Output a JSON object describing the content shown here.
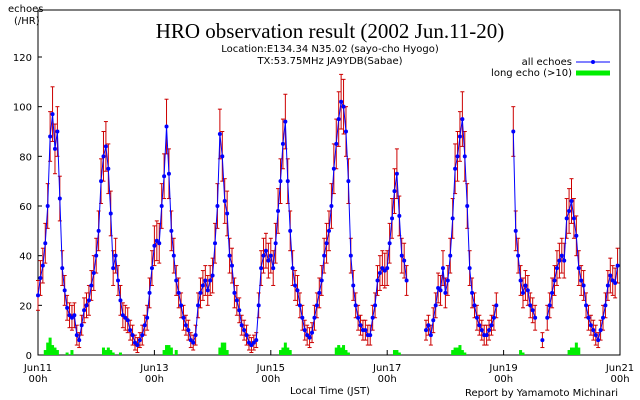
{
  "chart_data": {
    "type": "line",
    "title": "HRO observation result (2002 Jun.11-20)",
    "subtitles": [
      "Location:E134.34 N35.02 (sayo-cho Hyogo)",
      "TX:53.75MHz JA9YDB(Sabae)"
    ],
    "y_label": [
      "echoes",
      "(/HR)"
    ],
    "x_label": "Local Time (JST)",
    "annotation": "Report by Yamamoto Michinari",
    "legend": "top-right",
    "xlim": [
      0,
      240
    ],
    "xticks": [
      {
        "value": 0,
        "label": "Jun11\n00h"
      },
      {
        "value": 48,
        "label": "Jun13\n00h"
      },
      {
        "value": 96,
        "label": "Jun15\n00h"
      },
      {
        "value": 144,
        "label": "Jun17\n00h"
      },
      {
        "value": 192,
        "label": "Jun19\n00h"
      },
      {
        "value": 240,
        "label": "Jun21\n00h"
      }
    ],
    "ylim": [
      0,
      120
    ],
    "yticks": [
      0,
      20,
      40,
      60,
      80,
      100,
      120
    ],
    "x": [
      0,
      1,
      2,
      3,
      4,
      5,
      6,
      7,
      8,
      9,
      10,
      11,
      12,
      13,
      14,
      15,
      16,
      17,
      18,
      19,
      20,
      21,
      22,
      23,
      24,
      25,
      26,
      27,
      28,
      29,
      30,
      31,
      32,
      33,
      34,
      35,
      36,
      37,
      38,
      39,
      40,
      41,
      42,
      43,
      44,
      45,
      46,
      47,
      48,
      49,
      50,
      51,
      52,
      53,
      54,
      55,
      56,
      57,
      58,
      59,
      60,
      61,
      62,
      63,
      64,
      65,
      66,
      67,
      68,
      69,
      70,
      71,
      72,
      73,
      74,
      75,
      76,
      77,
      78,
      79,
      80,
      81,
      82,
      83,
      84,
      85,
      86,
      87,
      88,
      89,
      90,
      91,
      92,
      93,
      94,
      95,
      96,
      97,
      98,
      99,
      100,
      101,
      102,
      103,
      104,
      105,
      106,
      107,
      108,
      109,
      110,
      111,
      112,
      113,
      114,
      115,
      116,
      117,
      118,
      119,
      120,
      121,
      122,
      123,
      124,
      125,
      126,
      127,
      128,
      129,
      130,
      131,
      132,
      133,
      134,
      135,
      136,
      137,
      138,
      139,
      140,
      141,
      142,
      143,
      144,
      145,
      146,
      147,
      148,
      149,
      150,
      151,
      152,
      153,
      154,
      155,
      156,
      157,
      158,
      159,
      160,
      161,
      162,
      163,
      164,
      165,
      166,
      167,
      168,
      169,
      170,
      171,
      172,
      173,
      174,
      175,
      176,
      177,
      178,
      179,
      180,
      181,
      182,
      183,
      184,
      185,
      186,
      187,
      188,
      189,
      190,
      191,
      192,
      193,
      194,
      195,
      196,
      197,
      198,
      199,
      200,
      201,
      202,
      203,
      204,
      205,
      206,
      207,
      208,
      209,
      210,
      211,
      212,
      213,
      214,
      215,
      216,
      217,
      218,
      219,
      220,
      221,
      222,
      223,
      224,
      225,
      226,
      227,
      228,
      229,
      230,
      231,
      232,
      233,
      234,
      235,
      236,
      237,
      238,
      239
    ],
    "series": [
      {
        "name": "all echoes",
        "color": "#0000ff",
        "error_color": "#cc0000",
        "values": [
          24,
          31,
          36,
          45,
          60,
          88,
          97,
          83,
          90,
          63,
          35,
          26,
          19,
          16,
          15,
          16,
          8,
          6,
          12,
          18,
          20,
          22,
          28,
          33,
          40,
          50,
          70,
          80,
          84,
          75,
          57,
          35,
          40,
          30,
          22,
          16,
          15,
          14,
          10,
          8,
          5,
          4,
          6,
          8,
          12,
          15,
          25,
          35,
          44,
          46,
          45,
          60,
          72,
          92,
          73,
          50,
          40,
          30,
          25,
          20,
          15,
          12,
          10,
          6,
          5,
          8,
          20,
          25,
          28,
          30,
          26,
          30,
          32,
          45,
          60,
          89,
          80,
          62,
          57,
          40,
          36,
          25,
          22,
          18,
          12,
          10,
          8,
          5,
          4,
          5,
          6,
          20,
          35,
          40,
          42,
          38,
          40,
          35,
          45,
          58,
          70,
          85,
          94,
          70,
          50,
          35,
          28,
          26,
          20,
          15,
          10,
          8,
          7,
          9,
          15,
          20,
          25,
          30,
          40,
          45,
          50,
          60,
          75,
          85,
          95,
          102,
          100,
          90,
          70,
          40,
          28,
          20,
          15,
          12,
          10,
          10,
          8,
          8,
          15,
          20,
          30,
          33,
          35,
          34,
          35,
          45,
          55,
          66,
          73,
          56,
          40,
          38,
          30,
          null,
          null,
          null,
          null,
          null,
          null,
          null,
          10,
          12,
          8,
          14,
          20,
          27,
          26,
          35,
          25,
          30,
          40,
          55,
          75,
          80,
          88,
          95,
          80,
          60,
          35,
          25,
          20,
          15,
          12,
          10,
          8,
          8,
          10,
          12,
          15,
          20,
          null,
          null,
          null,
          null,
          null,
          null,
          90,
          50,
          40,
          30,
          25,
          28,
          26,
          20,
          18,
          15,
          null,
          null,
          6,
          null,
          15,
          20,
          25,
          30,
          35,
          38,
          40,
          38,
          55,
          58,
          62,
          55,
          48,
          35,
          30,
          28,
          20,
          15,
          12,
          10,
          8,
          6,
          10,
          15,
          20,
          28,
          32,
          30,
          29,
          36
        ],
        "errors": [
          6,
          7,
          7,
          8,
          9,
          10,
          11,
          10,
          10,
          9,
          7,
          6,
          5,
          5,
          5,
          5,
          4,
          3,
          4,
          5,
          5,
          6,
          6,
          7,
          7,
          8,
          9,
          10,
          10,
          10,
          9,
          7,
          7,
          6,
          6,
          5,
          5,
          5,
          4,
          4,
          3,
          3,
          3,
          4,
          4,
          5,
          6,
          7,
          8,
          8,
          8,
          9,
          9,
          11,
          10,
          8,
          7,
          6,
          6,
          5,
          5,
          4,
          4,
          3,
          3,
          4,
          5,
          6,
          6,
          6,
          6,
          6,
          7,
          8,
          9,
          10,
          10,
          9,
          9,
          7,
          7,
          6,
          6,
          5,
          4,
          4,
          4,
          3,
          3,
          3,
          3,
          5,
          7,
          7,
          7,
          7,
          7,
          7,
          8,
          9,
          9,
          10,
          11,
          9,
          8,
          7,
          6,
          6,
          5,
          5,
          4,
          4,
          4,
          4,
          5,
          5,
          6,
          6,
          7,
          8,
          8,
          9,
          10,
          10,
          11,
          11,
          11,
          10,
          9,
          7,
          6,
          5,
          5,
          4,
          4,
          4,
          4,
          4,
          5,
          5,
          6,
          7,
          7,
          7,
          7,
          8,
          8,
          9,
          10,
          8,
          7,
          7,
          6,
          null,
          null,
          null,
          null,
          null,
          null,
          null,
          4,
          4,
          4,
          5,
          5,
          6,
          6,
          7,
          6,
          6,
          7,
          8,
          10,
          10,
          10,
          11,
          10,
          9,
          7,
          6,
          5,
          5,
          4,
          4,
          4,
          4,
          4,
          4,
          5,
          5,
          null,
          null,
          null,
          null,
          null,
          null,
          10,
          8,
          7,
          6,
          6,
          6,
          6,
          5,
          5,
          5,
          null,
          null,
          3,
          null,
          5,
          5,
          6,
          6,
          7,
          7,
          7,
          7,
          8,
          9,
          9,
          8,
          8,
          7,
          6,
          6,
          5,
          5,
          4,
          4,
          4,
          3,
          4,
          5,
          5,
          6,
          7,
          6,
          6,
          7
        ]
      },
      {
        "name": "long echo (>10)",
        "color": "#00ee00",
        "type": "bar",
        "x": [
          3,
          4,
          5,
          6,
          7,
          8,
          12,
          14,
          27,
          28,
          29,
          30,
          31,
          34,
          52,
          53,
          54,
          55,
          57,
          75,
          76,
          77,
          78,
          100,
          101,
          102,
          103,
          104,
          123,
          124,
          125,
          126,
          127,
          128,
          147,
          148,
          149,
          171,
          172,
          173,
          174,
          175,
          176,
          199,
          200,
          219,
          220,
          221,
          222,
          223
        ],
        "values": [
          2,
          5,
          7,
          4,
          3,
          2,
          1,
          2,
          3,
          2,
          3,
          2,
          1,
          1,
          2,
          4,
          4,
          3,
          2,
          3,
          5,
          5,
          2,
          2,
          3,
          5,
          3,
          2,
          3,
          4,
          3,
          4,
          2,
          1,
          2,
          2,
          1,
          2,
          3,
          3,
          4,
          2,
          1,
          2,
          1,
          2,
          3,
          3,
          5,
          3
        ]
      }
    ]
  }
}
